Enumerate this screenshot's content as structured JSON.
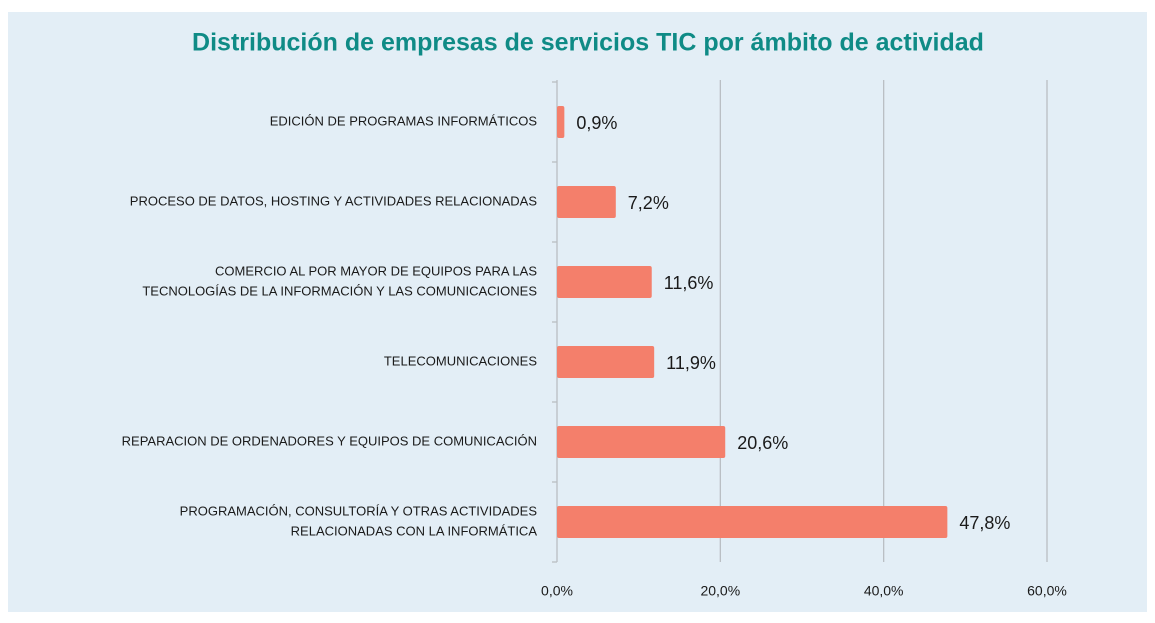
{
  "chart_data": {
    "type": "barh",
    "title": "Distribución de empresas de servicios TIC por ámbito de actividad",
    "categories": [
      [
        "EDICIÓN DE PROGRAMAS INFORMÁTICOS"
      ],
      [
        "PROCESO DE DATOS, HOSTING Y ACTIVIDADES RELACIONADAS"
      ],
      [
        "COMERCIO AL POR MAYOR DE EQUIPOS PARA LAS",
        "TECNOLOGÍAS DE LA INFORMACIÓN Y LAS COMUNICACIONES"
      ],
      [
        "TELECOMUNICACIONES"
      ],
      [
        "REPARACION DE ORDENADORES Y EQUIPOS DE COMUNICACIÓN"
      ],
      [
        "PROGRAMACIÓN, CONSULTORÍA Y OTRAS ACTIVIDADES",
        "RELACIONADAS CON LA INFORMÁTICA"
      ]
    ],
    "values": [
      0.9,
      7.2,
      11.6,
      11.9,
      20.6,
      47.8
    ],
    "value_labels": [
      "0,9%",
      "7,2%",
      "11,6%",
      "11,9%",
      "20,6%",
      "47,8%"
    ],
    "color": "#f47f6b",
    "xlim": [
      0,
      60
    ],
    "xticks": [
      {
        "value": 0,
        "label": "0,0%"
      },
      {
        "value": 20,
        "label": "20,0%"
      },
      {
        "value": 40,
        "label": "40,0%"
      },
      {
        "value": 60,
        "label": "60,0%"
      }
    ],
    "grid": true
  }
}
